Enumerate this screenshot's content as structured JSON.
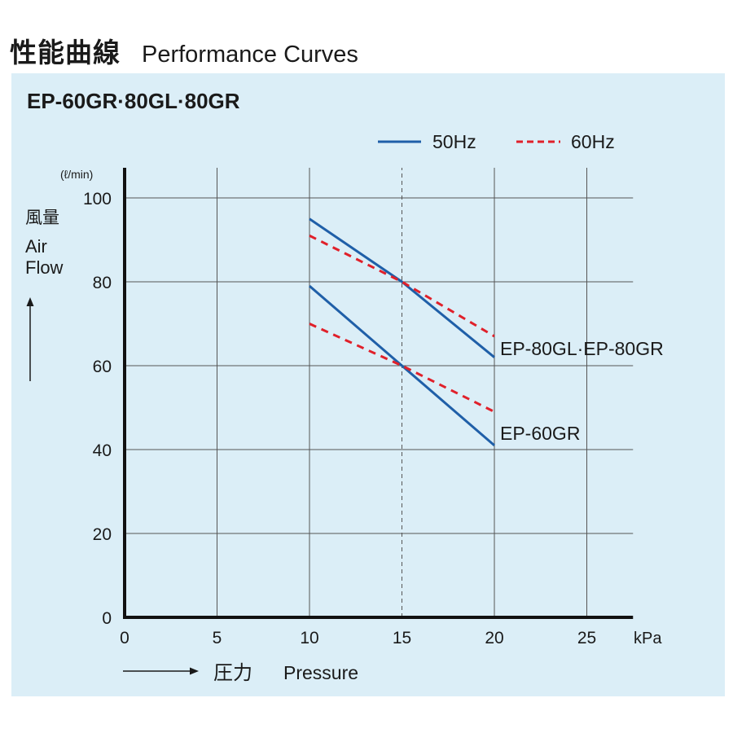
{
  "header": {
    "title_jp": "性能曲線",
    "title_en": "Performance Curves"
  },
  "colors": {
    "panel_bg": "#dbeef7",
    "hz50": "#1f5fa8",
    "hz60": "#e0202a",
    "axis": "#111111",
    "grid": "#555555"
  },
  "chart_data": {
    "type": "line",
    "title": "EP-60GR·80GL·80GR",
    "x_unit": "kPa",
    "y_unit": "(ℓ/min)",
    "ylabel_jp": "風量",
    "ylabel_en_1": "Air",
    "ylabel_en_2": "Flow",
    "xlabel_jp": "圧力",
    "xlabel_en": "Pressure",
    "xlim": [
      0,
      27.5
    ],
    "ylim": [
      0,
      100
    ],
    "x_ticks": [
      "0",
      "5",
      "10",
      "15",
      "20",
      "25"
    ],
    "y_ticks": [
      "0",
      "20",
      "40",
      "60",
      "80",
      "100"
    ],
    "grid": true,
    "reference_line_x": 15,
    "legend": {
      "position": "top-right",
      "entries": [
        {
          "label": "50Hz",
          "style": "solid"
        },
        {
          "label": "60Hz",
          "style": "dashed"
        }
      ]
    },
    "model_labels": {
      "upper": "EP-80GL·EP-80GR",
      "lower": "EP-60GR"
    },
    "series": [
      {
        "model": "EP-80GL·EP-80GR",
        "freq": "50Hz",
        "style": "solid",
        "x": [
          10,
          15,
          20
        ],
        "y": [
          95,
          80,
          62
        ]
      },
      {
        "model": "EP-80GL·EP-80GR",
        "freq": "60Hz",
        "style": "dashed",
        "x": [
          10,
          15,
          20
        ],
        "y": [
          91,
          80,
          67
        ]
      },
      {
        "model": "EP-60GR",
        "freq": "50Hz",
        "style": "solid",
        "x": [
          10,
          15,
          20
        ],
        "y": [
          79,
          60,
          41
        ]
      },
      {
        "model": "EP-60GR",
        "freq": "60Hz",
        "style": "dashed",
        "x": [
          10,
          15,
          20
        ],
        "y": [
          70,
          60,
          49
        ]
      }
    ]
  }
}
